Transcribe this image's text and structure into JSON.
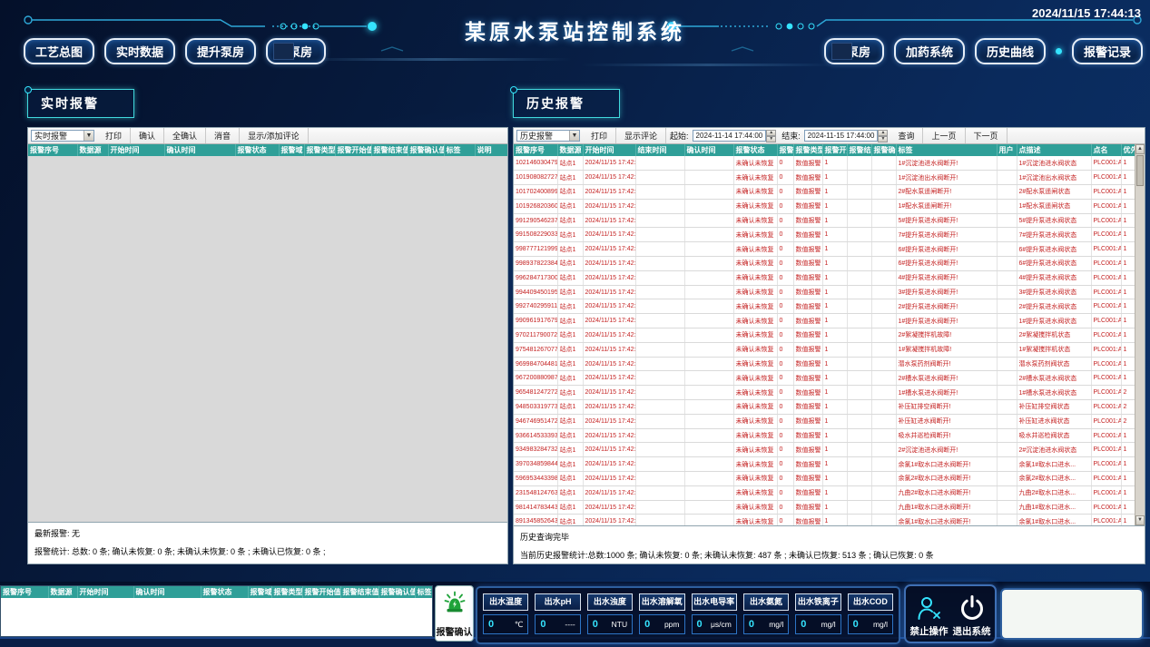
{
  "colors": {
    "accent": "#35e4ff",
    "table_header_teal": "#2f9f98",
    "alarm_red": "#c42222",
    "lamp_green": "#1fa33a"
  },
  "header": {
    "title": "某原水泵站控制系统",
    "datetime": "2024/11/15 17:44:13",
    "nav_left": [
      {
        "label": "工艺总图"
      },
      {
        "label": "实时数据"
      },
      {
        "label": "提升泵房"
      },
      {
        "label": "泵房"
      }
    ],
    "nav_right": [
      {
        "label": "泵房"
      },
      {
        "label": "加药系统"
      },
      {
        "label": "历史曲线"
      },
      {
        "label": "报警记录"
      }
    ]
  },
  "realtime_panel": {
    "tab": "实时报警",
    "toolbar": {
      "mode": "实时报警",
      "print": "打印",
      "ack": "确认",
      "ack_all": "全确认",
      "mute": "消音",
      "comments": "显示/添加评论"
    },
    "columns": [
      "报警序号",
      "数据源",
      "开始时间",
      "确认时间",
      "报警状态",
      "报警域",
      "报警类型",
      "报警开始值",
      "报警结束值",
      "报警确认值",
      "标签",
      "说明"
    ],
    "rows": [],
    "latest_alarm": "最新报警: 无",
    "stats": "报警统计: 总数: 0 条;  确认未恢复: 0 条;  未确认未恢复: 0 条 ;  未确认已恢复: 0 条 ;"
  },
  "history_panel": {
    "tab": "历史报警",
    "toolbar": {
      "mode": "历史报警",
      "print": "打印",
      "comments": "显示评论",
      "start_label": "起始:",
      "start_value": "2024-11-14 17:44:00",
      "end_label": "结束:",
      "end_value": "2024-11-15 17:44:00",
      "query": "查询",
      "prev": "上一页",
      "next": "下一页"
    },
    "columns": [
      "报警序号",
      "数据源",
      "开始时间",
      "结束时间",
      "确认时间",
      "报警状态",
      "报警域",
      "报警类型",
      "报警开始值",
      "报警结束值",
      "报警确认值",
      "标签",
      "用户",
      "点描述",
      "点名",
      "优先级"
    ],
    "rows": [
      {
        "id": "10214603047981..",
        "src": "站点1",
        "start": "2024/11/15 17:42:08",
        "end": "",
        "ack": "",
        "state": "未确认未恢复",
        "area": "0",
        "type": "数值报警",
        "v1": "1",
        "v2": "",
        "v3": "",
        "tag": "1#沉淀池进水阀断开!",
        "user": "",
        "desc": "1#沉淀池进水阀状态",
        "point": "PLC001:A6..",
        "pri": "1"
      },
      {
        "id": "10190808272748..",
        "src": "站点1",
        "start": "2024/11/15 17:42:08",
        "end": "",
        "ack": "",
        "state": "未确认未恢复",
        "area": "0",
        "type": "数值报警",
        "v1": "1",
        "v2": "",
        "v3": "",
        "tag": "1#沉淀池出水阀断开!",
        "user": "",
        "desc": "1#沉淀池出水阀状态",
        "point": "PLC001:A6..",
        "pri": "1"
      },
      {
        "id": "10170240089985..",
        "src": "站点1",
        "start": "2024/11/15 17:42:08",
        "end": "",
        "ack": "",
        "state": "未确认未恢复",
        "area": "0",
        "type": "数值报警",
        "v1": "1",
        "v2": "",
        "v3": "",
        "tag": "2#配水泵遥闸断开!",
        "user": "",
        "desc": "2#配水泵遥闸状态",
        "point": "PLC001:A6..",
        "pri": "1"
      },
      {
        "id": "10192682036051..",
        "src": "站点1",
        "start": "2024/11/15 17:42:08",
        "end": "",
        "ack": "",
        "state": "未确认未恢复",
        "area": "0",
        "type": "数值报警",
        "v1": "1",
        "v2": "",
        "v3": "",
        "tag": "1#配水泵遥闸断开!",
        "user": "",
        "desc": "1#配水泵遥闸状态",
        "point": "PLC001:A6..",
        "pri": "1"
      },
      {
        "id": "99129054623777..",
        "src": "站点1",
        "start": "2024/11/15 17:42:08",
        "end": "",
        "ack": "",
        "state": "未确认未恢复",
        "area": "0",
        "type": "数值报警",
        "v1": "1",
        "v2": "",
        "v3": "",
        "tag": "5#提升泵进水阀断开!",
        "user": "",
        "desc": "5#提升泵进水阀状态",
        "point": "PLC001:A6..",
        "pri": "1"
      },
      {
        "id": "99150822903329..",
        "src": "站点1",
        "start": "2024/11/15 17:42:08",
        "end": "",
        "ack": "",
        "state": "未确认未恢复",
        "area": "0",
        "type": "数值报警",
        "v1": "1",
        "v2": "",
        "v3": "",
        "tag": "7#提升泵进水阀断开!",
        "user": "",
        "desc": "7#提升泵进水阀状态",
        "point": "PLC001:A6..",
        "pri": "1"
      },
      {
        "id": "99877712199999..",
        "src": "站点1",
        "start": "2024/11/15 17:42:08",
        "end": "",
        "ack": "",
        "state": "未确认未恢复",
        "area": "0",
        "type": "数值报警",
        "v1": "1",
        "v2": "",
        "v3": "",
        "tag": "6#提升泵进水阀断开!",
        "user": "",
        "desc": "6#提升泵进水阀状态",
        "point": "PLC001:A6..",
        "pri": "1"
      },
      {
        "id": "99893782238445..",
        "src": "站点1",
        "start": "2024/11/15 17:42:08",
        "end": "",
        "ack": "",
        "state": "未确认未恢复",
        "area": "0",
        "type": "数值报警",
        "v1": "1",
        "v2": "",
        "v3": "",
        "tag": "6#提升泵进水阀断开!",
        "user": "",
        "desc": "6#提升泵进水阀状态",
        "point": "PLC001:A6..",
        "pri": "1"
      },
      {
        "id": "99628471730084..",
        "src": "站点1",
        "start": "2024/11/15 17:42:08",
        "end": "",
        "ack": "",
        "state": "未确认未恢复",
        "area": "0",
        "type": "数值报警",
        "v1": "1",
        "v2": "",
        "v3": "",
        "tag": "4#提升泵进水阀断开!",
        "user": "",
        "desc": "4#提升泵进水阀状态",
        "point": "PLC001:A6..",
        "pri": "1"
      },
      {
        "id": "99440945019596..",
        "src": "站点1",
        "start": "2024/11/15 17:42:08",
        "end": "",
        "ack": "",
        "state": "未确认未恢复",
        "area": "0",
        "type": "数值报警",
        "v1": "1",
        "v2": "",
        "v3": "",
        "tag": "3#提升泵进水阀断开!",
        "user": "",
        "desc": "3#提升泵进水阀状态",
        "point": "PLC001:A6..",
        "pri": "1"
      },
      {
        "id": "99274029591121..",
        "src": "站点1",
        "start": "2024/11/15 17:42:08",
        "end": "",
        "ack": "",
        "state": "未确认未恢复",
        "area": "0",
        "type": "数值报警",
        "v1": "1",
        "v2": "",
        "v3": "",
        "tag": "2#提升泵进水阀断开!",
        "user": "",
        "desc": "2#提升泵进水阀状态",
        "point": "PLC001:A6..",
        "pri": "1"
      },
      {
        "id": "99096191767933..",
        "src": "站点1",
        "start": "2024/11/15 17:42:08",
        "end": "",
        "ack": "",
        "state": "未确认未恢复",
        "area": "0",
        "type": "数值报警",
        "v1": "1",
        "v2": "",
        "v3": "",
        "tag": "1#提升泵进水阀断开!",
        "user": "",
        "desc": "1#提升泵进水阀状态",
        "point": "PLC001:A6..",
        "pri": "1"
      },
      {
        "id": "97021179007223..",
        "src": "站点1",
        "start": "2024/11/15 17:42:08",
        "end": "",
        "ack": "",
        "state": "未确认未恢复",
        "area": "0",
        "type": "数值报警",
        "v1": "1",
        "v2": "",
        "v3": "",
        "tag": "2#絮凝搅拌机故障!",
        "user": "",
        "desc": "2#絮凝搅拌机状态",
        "point": "PLC001:A6..",
        "pri": "1"
      },
      {
        "id": "97548126707796..",
        "src": "站点1",
        "start": "2024/11/15 17:42:08",
        "end": "",
        "ack": "",
        "state": "未确认未恢复",
        "area": "0",
        "type": "数值报警",
        "v1": "1",
        "v2": "",
        "v3": "",
        "tag": "1#絮凝搅拌机故障!",
        "user": "",
        "desc": "1#絮凝搅拌机状态",
        "point": "PLC001:A6..",
        "pri": "1"
      },
      {
        "id": "96998470448135..",
        "src": "站点1",
        "start": "2024/11/15 17:42:08",
        "end": "",
        "ack": "",
        "state": "未确认未恢复",
        "area": "0",
        "type": "数值报警",
        "v1": "1",
        "v2": "",
        "v3": "",
        "tag": "潜水泵药剂阀断开!",
        "user": "",
        "desc": "潜水泵药剂阀状态",
        "point": "PLC001:A6..",
        "pri": "1"
      },
      {
        "id": "96720088098771..",
        "src": "站点1",
        "start": "2024/11/15 17:42:08",
        "end": "",
        "ack": "",
        "state": "未确认未恢复",
        "area": "0",
        "type": "数值报警",
        "v1": "1",
        "v2": "",
        "v3": "",
        "tag": "2#槽水泵进水阀断开!",
        "user": "",
        "desc": "2#槽水泵进水阀状态",
        "point": "PLC001:A6..",
        "pri": "1"
      },
      {
        "id": "96548124727267..",
        "src": "站点1",
        "start": "2024/11/15 17:42:08",
        "end": "",
        "ack": "",
        "state": "未确认未恢复",
        "area": "0",
        "type": "数值报警",
        "v1": "1",
        "v2": "",
        "v3": "",
        "tag": "1#槽水泵进水阀断开!",
        "user": "",
        "desc": "1#槽水泵进水阀状态",
        "point": "PLC001:A6..",
        "pri": "2"
      },
      {
        "id": "94850331977398..",
        "src": "站点1",
        "start": "2024/11/15 17:42:08",
        "end": "",
        "ack": "",
        "state": "未确认未恢复",
        "area": "0",
        "type": "数值报警",
        "v1": "1",
        "v2": "",
        "v3": "",
        "tag": "补压缸排空阀断开!",
        "user": "",
        "desc": "补压缸排空阀状态",
        "point": "PLC001:A6..",
        "pri": "2"
      },
      {
        "id": "94674695147299..",
        "src": "站点1",
        "start": "2024/11/15 17:42:08",
        "end": "",
        "ack": "",
        "state": "未确认未恢复",
        "area": "0",
        "type": "数值报警",
        "v1": "1",
        "v2": "",
        "v3": "",
        "tag": "补压缸进水阀断开!",
        "user": "",
        "desc": "补压缸进水阀状态",
        "point": "PLC001:A6..",
        "pri": "2"
      },
      {
        "id": "93661453339315..",
        "src": "站点1",
        "start": "2024/11/15 17:42:08",
        "end": "",
        "ack": "",
        "state": "未确认未恢复",
        "area": "0",
        "type": "数值报警",
        "v1": "1",
        "v2": "",
        "v3": "",
        "tag": "吸水井巡检阀断开!",
        "user": "",
        "desc": "吸水井巡检阀状态",
        "point": "PLC001:A6..",
        "pri": "1"
      },
      {
        "id": "93498328473247..",
        "src": "站点1",
        "start": "2024/11/15 17:42:08",
        "end": "",
        "ack": "",
        "state": "未确认未恢复",
        "area": "0",
        "type": "数值报警",
        "v1": "1",
        "v2": "",
        "v3": "",
        "tag": "2#沉淀池进水阀断开!",
        "user": "",
        "desc": "2#沉淀池进水阀状态",
        "point": "PLC001:A6..",
        "pri": "1"
      },
      {
        "id": "39703485984493..",
        "src": "站点1",
        "start": "2024/11/15 17:42:08",
        "end": "",
        "ack": "",
        "state": "未确认未恢复",
        "area": "0",
        "type": "数值报警",
        "v1": "1",
        "v2": "",
        "v3": "",
        "tag": "余氯1#取水口进水阀断开!",
        "user": "",
        "desc": "余氯1#取水口进水...",
        "point": "PLC001:A6..",
        "pri": "1"
      },
      {
        "id": "59695344339888..",
        "src": "站点1",
        "start": "2024/11/15 17:42:08",
        "end": "",
        "ack": "",
        "state": "未确认未恢复",
        "area": "0",
        "type": "数值报警",
        "v1": "1",
        "v2": "",
        "v3": "",
        "tag": "余氯2#取水口进水阀断开!",
        "user": "",
        "desc": "余氯2#取水口进水...",
        "point": "PLC001:A6..",
        "pri": "1"
      },
      {
        "id": "23154812476312..",
        "src": "站点1",
        "start": "2024/11/15 17:42:08",
        "end": "",
        "ack": "",
        "state": "未确认未恢复",
        "area": "0",
        "type": "数值报警",
        "v1": "1",
        "v2": "",
        "v3": "",
        "tag": "九曲2#取水口进水阀断开!",
        "user": "",
        "desc": "九曲2#取水口进水...",
        "point": "PLC001:A6..",
        "pri": "1"
      },
      {
        "id": "98141478344399..",
        "src": "站点1",
        "start": "2024/11/15 17:42:08",
        "end": "",
        "ack": "",
        "state": "未确认未恢复",
        "area": "0",
        "type": "数值报警",
        "v1": "1",
        "v2": "",
        "v3": "",
        "tag": "九曲1#取水口进水阀断开!",
        "user": "",
        "desc": "九曲1#取水口进水...",
        "point": "PLC001:A6..",
        "pri": "1"
      },
      {
        "id": "89134585264359..",
        "src": "站点1",
        "start": "2024/11/15 17:42:08",
        "end": "",
        "ack": "",
        "state": "未确认未恢复",
        "area": "0",
        "type": "数值报警",
        "v1": "1",
        "v2": "",
        "v3": "",
        "tag": "余氯1#取水口进水阀断开!",
        "user": "",
        "desc": "余氯1#取水口进水...",
        "point": "PLC001:A6..",
        "pri": "1"
      },
      {
        "id": "89896934433917..",
        "src": "站点1",
        "start": "2024/11/15 17:42:08",
        "end": "",
        "ack": "",
        "state": "未确认未恢复",
        "area": "0",
        "type": "数值报警",
        "v1": "1",
        "v2": "",
        "v3": "",
        "tag": "余氯2#取水口进水阀断开!",
        "user": "",
        "desc": "余氯2#取水口进水...",
        "point": "PLC001:A6..",
        "pri": "1"
      }
    ],
    "result_msg": "历史查询完毕",
    "stats": "当前历史报警统计:总数:1000 条;  确认未恢复: 0 条;  未确认未恢复: 487 条 ;  未确认已恢复: 513 条 ;  确认已恢复: 0 条"
  },
  "footer": {
    "columns": [
      "报警序号",
      "数据源",
      "开始时间",
      "确认时间",
      "报警状态",
      "报警域",
      "报警类型",
      "报警开始值",
      "报警结束值",
      "报警确认值",
      "标签"
    ],
    "ack_label": "报警确认",
    "tiles": [
      {
        "label": "出水温度",
        "value": "0",
        "unit": "℃"
      },
      {
        "label": "出水pH",
        "value": "0",
        "unit": "----"
      },
      {
        "label": "出水浊度",
        "value": "0",
        "unit": "NTU"
      },
      {
        "label": "出水溶解氧",
        "value": "0",
        "unit": "ppm"
      },
      {
        "label": "出水电导率",
        "value": "0",
        "unit": "μs/cm"
      },
      {
        "label": "出水氨氮",
        "value": "0",
        "unit": "mg/l"
      },
      {
        "label": "出水铁离子",
        "value": "0",
        "unit": "mg/l"
      },
      {
        "label": "出水COD",
        "value": "0",
        "unit": "mg/l"
      }
    ],
    "disable_label": "禁止操作",
    "exit_label": "退出系统"
  }
}
